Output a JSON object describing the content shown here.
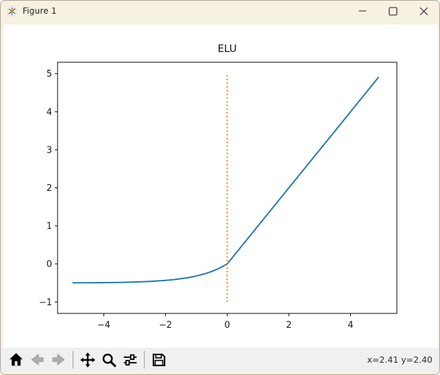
{
  "window": {
    "title": "Figure 1",
    "icon": "matplotlib-logo-icon",
    "controls": {
      "minimize": "minimize-button",
      "maximize": "maximize-button",
      "close": "close-button"
    }
  },
  "colors": {
    "titlebar_bg": "#f7f1e2",
    "toolbar_bg": "#f0f0f0",
    "canvas_bg": "#ffffff",
    "line_blue": "#1f77b4",
    "line_orange": "#ff7f0e"
  },
  "chart_data": {
    "type": "line",
    "title": "ELU",
    "xlabel": "",
    "ylabel": "",
    "grid": false,
    "legend": "none",
    "xlim": [
      -5.5,
      5.5
    ],
    "ylim": [
      -1.3,
      5.3
    ],
    "xticks": [
      -4,
      -2,
      0,
      2,
      4
    ],
    "xtick_labels": [
      "−4",
      "−2",
      "0",
      "2",
      "4"
    ],
    "yticks": [
      -1,
      0,
      1,
      2,
      3,
      4,
      5
    ],
    "ytick_labels": [
      "−1",
      "0",
      "1",
      "2",
      "3",
      "4",
      "5"
    ],
    "series": [
      {
        "name": "elu-curve",
        "color": "#1f77b4",
        "style": "solid",
        "width": 2,
        "points": [
          [
            -5.0,
            -0.497
          ],
          [
            -4.5,
            -0.494
          ],
          [
            -4.0,
            -0.491
          ],
          [
            -3.5,
            -0.485
          ],
          [
            -3.0,
            -0.475
          ],
          [
            -2.5,
            -0.459
          ],
          [
            -2.0,
            -0.432
          ],
          [
            -1.75,
            -0.413
          ],
          [
            -1.5,
            -0.388
          ],
          [
            -1.25,
            -0.357
          ],
          [
            -1.0,
            -0.316
          ],
          [
            -0.75,
            -0.264
          ],
          [
            -0.5,
            -0.197
          ],
          [
            -0.25,
            -0.111
          ],
          [
            0.0,
            0.0
          ],
          [
            0.25,
            0.25
          ],
          [
            0.5,
            0.5
          ],
          [
            1.0,
            1.0
          ],
          [
            1.5,
            1.5
          ],
          [
            2.0,
            2.0
          ],
          [
            2.5,
            2.5
          ],
          [
            3.0,
            3.0
          ],
          [
            3.5,
            3.5
          ],
          [
            4.0,
            4.0
          ],
          [
            4.5,
            4.5
          ],
          [
            4.9,
            4.9
          ]
        ]
      },
      {
        "name": "zero-vline",
        "color": "#ff7f0e",
        "style": "dotted",
        "width": 2,
        "points": [
          [
            0,
            -1
          ],
          [
            0,
            5
          ]
        ]
      }
    ]
  },
  "toolbar": {
    "icons": [
      {
        "name": "home-icon",
        "action": "reset-view",
        "enabled": true
      },
      {
        "name": "back-arrow-icon",
        "action": "back",
        "enabled": false
      },
      {
        "name": "forward-arrow-icon",
        "action": "forward",
        "enabled": false
      },
      {
        "name": "pan-icon",
        "action": "pan",
        "enabled": true
      },
      {
        "name": "zoom-magnifier-icon",
        "action": "zoom-to-rect",
        "enabled": true
      },
      {
        "name": "subplot-sliders-icon",
        "action": "configure-subplots",
        "enabled": true
      },
      {
        "name": "save-floppy-icon",
        "action": "save-figure",
        "enabled": true
      }
    ],
    "coordinates": "x=2.41 y=2.40"
  }
}
